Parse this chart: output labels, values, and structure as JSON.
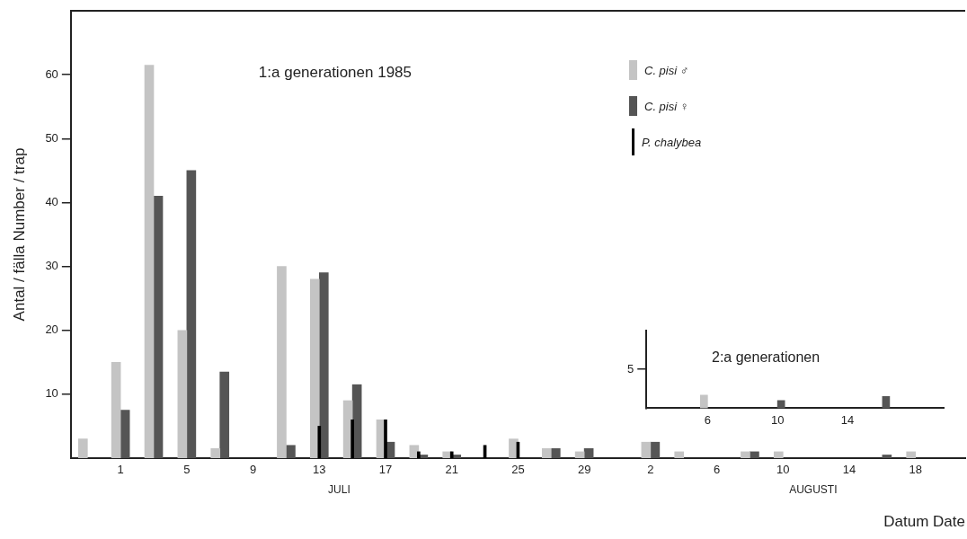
{
  "chart_data": [
    {
      "type": "bar",
      "title": "1:a generationen 1985",
      "ylabel": "Antal / fälla Number / trap",
      "xlabel": "Datum Date",
      "annotations": [
        "JULI",
        "AUGUSTI"
      ],
      "categories": [
        null,
        "1",
        null,
        "5",
        null,
        "9",
        null,
        "13",
        null,
        "17",
        null,
        "21",
        null,
        "25",
        null,
        "29",
        null,
        "2",
        null,
        "6",
        null,
        "10",
        null,
        "14",
        null,
        "18",
        null
      ],
      "series": [
        {
          "name": "C. pisi ♂",
          "color": "#c4c4c4",
          "values": [
            3,
            15,
            61.5,
            20,
            1.5,
            null,
            30,
            28,
            9,
            6,
            2,
            1,
            null,
            3,
            1.5,
            1,
            null,
            2.5,
            1,
            null,
            1,
            1,
            null,
            null,
            null,
            1,
            null
          ]
        },
        {
          "name": "C. pisi ♀",
          "color": "#555555",
          "values": [
            null,
            7.5,
            41,
            45,
            13.5,
            null,
            2,
            29,
            11.5,
            2.5,
            0.5,
            0.5,
            null,
            null,
            1.5,
            1.5,
            null,
            2.5,
            null,
            null,
            1,
            null,
            null,
            null,
            0.5,
            null,
            null
          ]
        },
        {
          "name": "P. chalybea",
          "color": "#000000",
          "values": [
            null,
            null,
            null,
            null,
            null,
            null,
            null,
            5,
            6,
            6,
            1,
            1,
            2,
            2.5,
            null,
            null,
            null,
            null,
            null,
            null,
            null,
            null,
            null,
            null,
            null,
            null,
            null
          ]
        }
      ],
      "ylim": [
        0,
        70
      ],
      "yticks": [
        10,
        20,
        30,
        40,
        50,
        60
      ],
      "grid": false,
      "legend": "top right"
    },
    {
      "type": "bar",
      "title": "2:a generationen",
      "categories": [
        null,
        null,
        null,
        "6",
        null,
        null,
        null,
        "10",
        null,
        null,
        null,
        "14",
        null,
        null,
        null,
        null,
        null
      ],
      "series": [
        {
          "color": "#c4c4c4",
          "values": [
            null,
            null,
            null,
            1.7,
            null,
            null,
            null,
            null,
            null,
            null,
            null,
            null,
            null,
            null,
            null,
            null,
            null
          ]
        },
        {
          "color": "#555555",
          "values": [
            null,
            null,
            null,
            null,
            null,
            null,
            null,
            1,
            null,
            null,
            null,
            null,
            null,
            1.5,
            null,
            null,
            null
          ]
        }
      ],
      "ylim": [
        0,
        10
      ],
      "yticks": [
        5
      ],
      "grid": false
    }
  ]
}
